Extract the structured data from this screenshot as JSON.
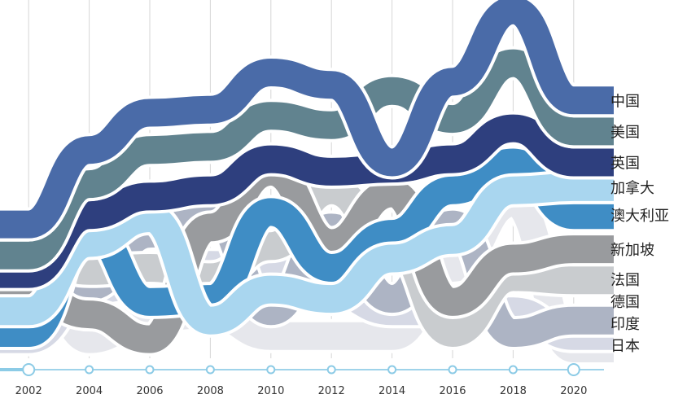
{
  "chart_data": {
    "type": "line",
    "title": "",
    "xlabel": "",
    "ylabel": "",
    "x": [
      2001,
      2003,
      2005,
      2007,
      2009,
      2011,
      2013,
      2015,
      2017,
      2019
    ],
    "x_ticks": [
      "2002",
      "2004",
      "2006",
      "2008",
      "2010",
      "2012",
      "2014",
      "2016",
      "2018",
      "2020"
    ],
    "x_range": [
      2000,
      2020
    ],
    "x_axis_style": "timeline",
    "y_range": [
      0,
      11
    ],
    "y_axis": "hidden",
    "grid": "vertical",
    "legend": "end-labels-right",
    "series": [
      {
        "name": "中国",
        "color": "#4a6ba8",
        "values": [
          4.0,
          6.4,
          7.6,
          7.7,
          8.9,
          8.5,
          6.0,
          8.6,
          10.9,
          8.0
        ]
      },
      {
        "name": "美国",
        "color": "#61838f",
        "values": [
          3.0,
          5.3,
          6.4,
          6.5,
          7.5,
          7.2,
          8.3,
          7.4,
          9.2,
          7.0
        ]
      },
      {
        "name": "英国",
        "color": "#2e3f7e",
        "values": [
          2.4,
          4.3,
          4.9,
          5.1,
          6.1,
          5.7,
          5.8,
          6.1,
          7.1,
          6.0
        ]
      },
      {
        "name": "加拿大",
        "color": "#a9d6ef",
        "values": [
          1.2,
          3.4,
          4.2,
          0.9,
          1.9,
          1.6,
          2.9,
          3.5,
          5.1,
          5.2
        ]
      },
      {
        "name": "澳大利亚",
        "color": "#3f8dc5",
        "values": [
          0.5,
          3.8,
          1.5,
          1.6,
          4.4,
          2.6,
          3.7,
          5.1,
          6.0,
          4.3
        ]
      },
      {
        "name": "新加坡",
        "color": "#999b9e",
        "values": [
          1.8,
          1.1,
          0.3,
          3.9,
          5.7,
          3.4,
          5.0,
          1.5,
          2.9,
          3.2
        ]
      },
      {
        "name": "法国",
        "color": "#c9cccf",
        "values": [
          3.0,
          2.5,
          2.6,
          2.3,
          3.3,
          5.1,
          3.4,
          0.5,
          2.3,
          2.2
        ]
      },
      {
        "name": "德国",
        "color": "#adb4c4",
        "values": [
          0.9,
          2.0,
          3.7,
          4.3,
          1.2,
          3.9,
          1.6,
          4.0,
          0.5,
          0.9
        ]
      },
      {
        "name": "印度",
        "color": "#d6d9e5",
        "values": [
          0.3,
          1.9,
          2.1,
          2.7,
          2.6,
          1.8,
          1.2,
          1.2,
          1.2,
          0.4
        ]
      },
      {
        "name": "日本",
        "color": "#e6e7ec",
        "values": [
          3.5,
          0.3,
          1.0,
          1.1,
          0.4,
          0.4,
          0.4,
          2.6,
          4.7,
          0.0
        ]
      }
    ]
  }
}
